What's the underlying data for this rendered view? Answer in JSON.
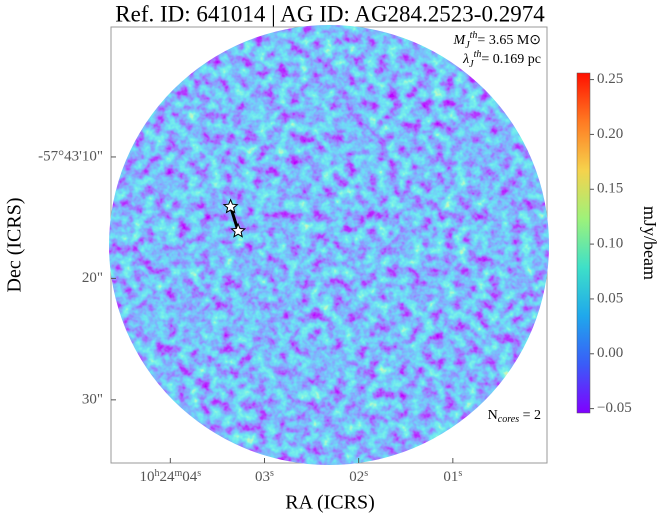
{
  "chart_data": {
    "type": "image",
    "title": "Ref. ID: 641014 | AG ID: AG284.2523-0.2974",
    "xlabel": "RA (ICRS)",
    "ylabel": "Dec (ICRS)",
    "xlim": [
      4.63,
      0.0
    ],
    "xticks": [
      {
        "value": 4,
        "label": "10h24m04s"
      },
      {
        "value": 3,
        "label": "03s"
      },
      {
        "value": 2,
        "label": "02s"
      },
      {
        "value": 1,
        "label": "01s"
      }
    ],
    "ylim": [
      -0.7,
      35.2
    ],
    "yticks": [
      {
        "value": 10,
        "label": "-57°43'10\""
      },
      {
        "value": 20,
        "label": "20\""
      },
      {
        "value": 30,
        "label": "30\""
      }
    ],
    "colorbar": {
      "label": "mJy/beam",
      "lim": [
        -0.054,
        0.256
      ],
      "ticks": [
        {
          "value": 0.25,
          "label": "0.25"
        },
        {
          "value": 0.2,
          "label": "0.20"
        },
        {
          "value": 0.15,
          "label": "0.15"
        },
        {
          "value": 0.1,
          "label": "0.10"
        },
        {
          "value": 0.05,
          "label": "0.05"
        },
        {
          "value": 0,
          "label": "0.00"
        },
        {
          "value": -0.05,
          "label": "−0.05"
        }
      ],
      "colormap": [
        "#8000ff",
        "#3a5cf8",
        "#1fa8ec",
        "#3ee0c8",
        "#9ef27a",
        "#f6d24c",
        "#ff7a22",
        "#ff1000"
      ]
    },
    "cores": {
      "x": [
        3.36,
        3.28
      ],
      "y": [
        14.1,
        16.1
      ]
    },
    "annotations": {
      "mass": {
        "symbol": "M",
        "sub": "J",
        "sup": "th",
        "text": "= 3.65 M⊙"
      },
      "length": {
        "symbol": "λ",
        "sub": "J",
        "sup": "th",
        "text": "= 0.169 pc"
      },
      "ncores": {
        "symbol": "N",
        "sub": "cores",
        "text": " = 2"
      }
    }
  }
}
